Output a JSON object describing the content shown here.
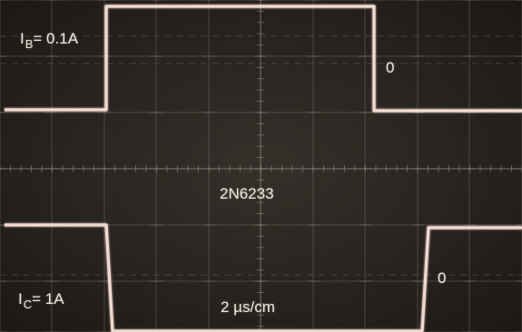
{
  "labels": {
    "ib_symbol": "I",
    "ib_sub": "B",
    "ib_value": "= 0.1A",
    "ic_symbol": "I",
    "ic_sub": "C",
    "ic_value": "= 1A",
    "zero_top": "0",
    "zero_bottom": "0",
    "device": "2N6233",
    "timebase": "2 µs/cm"
  },
  "colors": {
    "screen": "#2b2722",
    "graticule": "#9a928a",
    "trace": "#f1d9cf",
    "text": "#ece5dd"
  }
}
